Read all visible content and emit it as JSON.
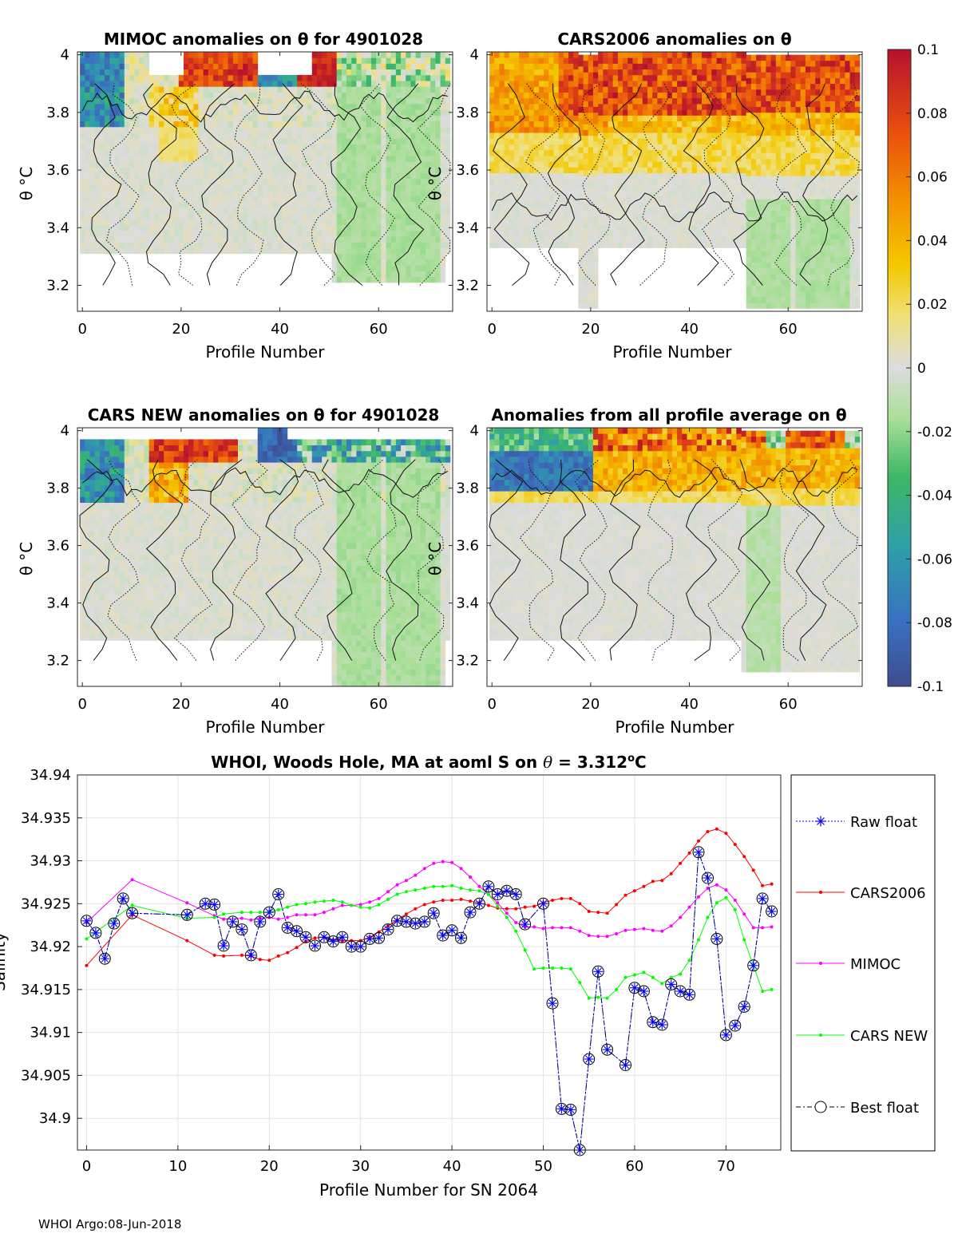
{
  "footer": "WHOI Argo:08-Jun-2018",
  "colorbar": {
    "ticks": [
      "0.1",
      "0.08",
      "0.06",
      "0.04",
      "0.02",
      "0",
      "-0.02",
      "-0.04",
      "-0.06",
      "-0.08",
      "-0.1"
    ],
    "range": [
      -0.1,
      0.1
    ]
  },
  "chart_data": [
    {
      "type": "heatmap",
      "id": "mimoc",
      "title": "MIMOC anomalies on θ  for 4901028",
      "xlabel": "Profile Number",
      "ylabel": "θ °C",
      "xlim": [
        -1,
        75
      ],
      "ylim": [
        3.11,
        4.01
      ],
      "xticks": [
        "0",
        "20",
        "40",
        "60"
      ],
      "yticks": [
        "4",
        "3.8",
        "3.6",
        "3.4",
        "3.2"
      ]
    },
    {
      "type": "heatmap",
      "id": "cars2006",
      "title": "CARS2006 anomalies on θ",
      "xlabel": "Profile Number",
      "ylabel": "θ °C",
      "xlim": [
        -1,
        75
      ],
      "ylim": [
        3.11,
        4.01
      ],
      "xticks": [
        "0",
        "20",
        "40",
        "60"
      ],
      "yticks": [
        "4",
        "3.8",
        "3.6",
        "3.4",
        "3.2"
      ]
    },
    {
      "type": "heatmap",
      "id": "carsnew",
      "title": "CARS NEW anomalies on θ for 4901028",
      "xlabel": "Profile Number",
      "ylabel": "θ °C",
      "xlim": [
        -1,
        75
      ],
      "ylim": [
        3.11,
        4.01
      ],
      "xticks": [
        "0",
        "20",
        "40",
        "60"
      ],
      "yticks": [
        "4",
        "3.8",
        "3.6",
        "3.4",
        "3.2"
      ]
    },
    {
      "type": "heatmap",
      "id": "allavg",
      "title": "Anomalies from all profile average on θ",
      "xlabel": "Profile Number",
      "ylabel": "θ °C",
      "xlim": [
        -1,
        75
      ],
      "ylim": [
        3.11,
        4.01
      ],
      "xticks": [
        "0",
        "20",
        "40",
        "60"
      ],
      "yticks": [
        "4",
        "3.8",
        "3.6",
        "3.4",
        "3.2"
      ]
    },
    {
      "type": "line",
      "id": "salinity",
      "title": "WHOI, Woods Hole, MA at aoml S on θ = 3.312°C",
      "title_parts": [
        "WHOI, Woods Hole, MA at aoml S on ",
        "θ",
        " = 3.312",
        "o",
        "C"
      ],
      "xlabel": "Profile Number for SN 2064",
      "ylabel": "Salinity",
      "xlim": [
        -1,
        76
      ],
      "ylim": [
        34.8963,
        34.94
      ],
      "xticks": [
        "0",
        "10",
        "20",
        "30",
        "40",
        "50",
        "60",
        "70"
      ],
      "yticks": [
        "34.94",
        "34.935",
        "34.93",
        "34.925",
        "34.92",
        "34.915",
        "34.91",
        "34.905",
        "34.9"
      ],
      "grid": true,
      "legend_position": "outside-right",
      "series": [
        {
          "name": "CARS2006",
          "color": "#ff0000",
          "x": [
            0,
            5,
            11,
            14,
            15,
            17,
            18,
            19,
            20,
            21,
            22,
            23,
            24,
            25,
            26,
            27,
            28,
            29,
            30,
            31,
            32,
            33,
            34,
            35,
            36,
            37,
            38,
            39,
            40,
            41,
            42,
            43,
            44,
            45,
            46,
            47,
            48,
            49,
            50,
            51,
            52,
            53,
            54,
            55,
            56,
            57,
            58,
            59,
            60,
            61,
            62,
            63,
            64,
            65,
            66,
            67,
            68,
            69,
            70,
            71,
            72,
            73,
            74,
            75
          ],
          "y": [
            34.9178,
            34.9237,
            34.9207,
            34.919,
            34.9189,
            34.919,
            34.9189,
            34.9185,
            34.9184,
            34.9189,
            34.9193,
            34.9199,
            34.9206,
            34.921,
            34.9211,
            34.9208,
            34.9207,
            34.9207,
            34.9207,
            34.9211,
            34.9217,
            34.9224,
            34.9231,
            34.9238,
            34.9244,
            34.9249,
            34.9252,
            34.9254,
            34.9254,
            34.9255,
            34.9253,
            34.9251,
            34.9248,
            34.9245,
            34.9244,
            34.9244,
            34.9246,
            34.9247,
            34.9251,
            34.9254,
            34.9256,
            34.9256,
            34.925,
            34.9241,
            34.924,
            34.9239,
            34.9249,
            34.926,
            34.9265,
            34.927,
            34.9276,
            34.9277,
            34.9285,
            34.9297,
            34.9309,
            34.9323,
            34.9334,
            34.9337,
            34.9332,
            34.9319,
            34.9305,
            34.9289,
            34.9271,
            34.9273
          ]
        },
        {
          "name": "MIMOC",
          "color": "#ff00ff",
          "x": [
            0,
            5,
            11,
            14,
            15,
            17,
            18,
            19,
            20,
            21,
            22,
            23,
            24,
            25,
            26,
            27,
            28,
            29,
            30,
            31,
            32,
            33,
            34,
            35,
            36,
            37,
            38,
            39,
            40,
            41,
            42,
            43,
            44,
            45,
            46,
            47,
            48,
            49,
            50,
            51,
            52,
            53,
            54,
            55,
            56,
            57,
            58,
            59,
            60,
            61,
            62,
            63,
            64,
            65,
            66,
            67,
            68,
            69,
            70,
            71,
            72,
            73,
            74,
            75
          ],
          "y": [
            34.9228,
            34.9278,
            34.9251,
            34.9236,
            34.9232,
            34.9233,
            34.9231,
            34.9233,
            34.9234,
            34.9232,
            34.9234,
            34.9237,
            34.9237,
            34.9237,
            34.924,
            34.9244,
            34.9248,
            34.9248,
            34.9249,
            34.9252,
            34.9256,
            34.9264,
            34.9272,
            34.9277,
            34.9283,
            34.9291,
            34.9297,
            34.9299,
            34.9298,
            34.9291,
            34.9281,
            34.927,
            34.9261,
            34.9251,
            34.9239,
            34.9228,
            34.9223,
            34.9223,
            34.9221,
            34.9222,
            34.9222,
            34.9222,
            34.9218,
            34.9213,
            34.9212,
            34.9212,
            34.9215,
            34.9219,
            34.922,
            34.9221,
            34.9219,
            34.9218,
            34.9224,
            34.9234,
            34.9246,
            34.9258,
            34.9268,
            34.9272,
            34.9266,
            34.9254,
            34.9238,
            34.9222,
            34.9222,
            34.9223
          ]
        },
        {
          "name": "CARS NEW",
          "color": "#00ff00",
          "x": [
            0,
            5,
            11,
            14,
            15,
            17,
            18,
            19,
            20,
            21,
            22,
            23,
            24,
            25,
            26,
            27,
            28,
            29,
            30,
            31,
            32,
            33,
            34,
            35,
            36,
            37,
            38,
            39,
            40,
            41,
            42,
            43,
            44,
            45,
            46,
            47,
            48,
            49,
            50,
            51,
            52,
            53,
            54,
            55,
            56,
            57,
            58,
            59,
            60,
            61,
            62,
            63,
            64,
            65,
            66,
            67,
            68,
            69,
            70,
            71,
            72,
            73,
            74,
            75
          ],
          "y": [
            34.9209,
            34.9248,
            34.9233,
            34.9234,
            34.9238,
            34.924,
            34.924,
            34.924,
            34.924,
            34.9243,
            34.9246,
            34.9249,
            34.925,
            34.9252,
            34.9253,
            34.9254,
            34.9252,
            34.9248,
            34.9246,
            34.9245,
            34.9249,
            34.9255,
            34.9261,
            34.9264,
            34.9266,
            34.9268,
            34.927,
            34.927,
            34.9271,
            34.9268,
            34.9266,
            34.9265,
            34.9261,
            34.9247,
            34.9234,
            34.9218,
            34.9196,
            34.9174,
            34.9175,
            34.9175,
            34.9175,
            34.9174,
            34.9158,
            34.914,
            34.9141,
            34.914,
            34.915,
            34.9164,
            34.9167,
            34.917,
            34.9164,
            34.9157,
            34.9164,
            34.9168,
            34.9184,
            34.9208,
            34.9234,
            34.9251,
            34.9257,
            34.9243,
            34.9208,
            34.9178,
            34.9148,
            34.915
          ]
        },
        {
          "name": "Raw float",
          "color": "#0000ff",
          "x": [
            0,
            1,
            2,
            3,
            4,
            5,
            11,
            13,
            14,
            15,
            16,
            17,
            18,
            19,
            20,
            21,
            22,
            23,
            24,
            25,
            26,
            27,
            28,
            29,
            30,
            31,
            32,
            33,
            34,
            35,
            36,
            37,
            38,
            39,
            40,
            41,
            42,
            43,
            44,
            45,
            46,
            47,
            48,
            50,
            51,
            52,
            53,
            54,
            55,
            56,
            57,
            59,
            60,
            61,
            62,
            63,
            64,
            65,
            66,
            67,
            68,
            69,
            70,
            71,
            72,
            73,
            74,
            75
          ],
          "y": [
            34.923,
            34.9216,
            34.9186,
            34.9227,
            34.9256,
            34.9239,
            34.9237,
            34.925,
            34.9249,
            34.9201,
            34.9229,
            34.922,
            34.919,
            34.9229,
            34.924,
            34.9261,
            34.9222,
            34.9218,
            34.9211,
            34.9201,
            34.9211,
            34.9206,
            34.9211,
            34.92,
            34.92,
            34.9209,
            34.921,
            34.922,
            34.923,
            34.9229,
            34.9227,
            34.9229,
            34.9239,
            34.9213,
            34.9219,
            34.921,
            34.924,
            34.925,
            34.927,
            34.9261,
            34.9265,
            34.9261,
            34.9226,
            34.925,
            34.9134,
            34.9011,
            34.901,
            34.8963,
            34.9069,
            34.9171,
            34.908,
            34.9062,
            34.9152,
            34.9148,
            34.9112,
            34.9109,
            34.9156,
            34.9148,
            34.9144,
            34.931,
            34.928,
            34.9209,
            34.9097,
            34.9108,
            34.913,
            34.9178,
            34.9256,
            34.9241
          ]
        },
        {
          "name": "Best float",
          "color": "#000000",
          "x": [
            0,
            1,
            2,
            3,
            4,
            5,
            11,
            13,
            14,
            15,
            16,
            17,
            18,
            19,
            20,
            21,
            22,
            23,
            24,
            25,
            26,
            27,
            28,
            29,
            30,
            31,
            32,
            33,
            34,
            35,
            36,
            37,
            38,
            39,
            40,
            41,
            42,
            43,
            44,
            45,
            46,
            47,
            48,
            50,
            51,
            52,
            53,
            54,
            55,
            56,
            57,
            59,
            60,
            61,
            62,
            63,
            64,
            65,
            66,
            67,
            68,
            69,
            70,
            71,
            72,
            73,
            74,
            75
          ],
          "y": [
            34.923,
            34.9216,
            34.9186,
            34.9227,
            34.9256,
            34.9239,
            34.9237,
            34.925,
            34.9249,
            34.9201,
            34.9229,
            34.922,
            34.919,
            34.9229,
            34.924,
            34.9261,
            34.9222,
            34.9218,
            34.9211,
            34.9201,
            34.9211,
            34.9206,
            34.9211,
            34.92,
            34.92,
            34.9209,
            34.921,
            34.922,
            34.923,
            34.9229,
            34.9227,
            34.9229,
            34.9239,
            34.9213,
            34.9219,
            34.921,
            34.924,
            34.925,
            34.927,
            34.9261,
            34.9265,
            34.9261,
            34.9226,
            34.925,
            34.9134,
            34.9011,
            34.901,
            34.8963,
            34.9069,
            34.9171,
            34.908,
            34.9062,
            34.9152,
            34.9148,
            34.9112,
            34.9109,
            34.9156,
            34.9148,
            34.9144,
            34.931,
            34.928,
            34.9209,
            34.9097,
            34.9108,
            34.913,
            34.9178,
            34.9256,
            34.9241
          ]
        }
      ]
    }
  ]
}
